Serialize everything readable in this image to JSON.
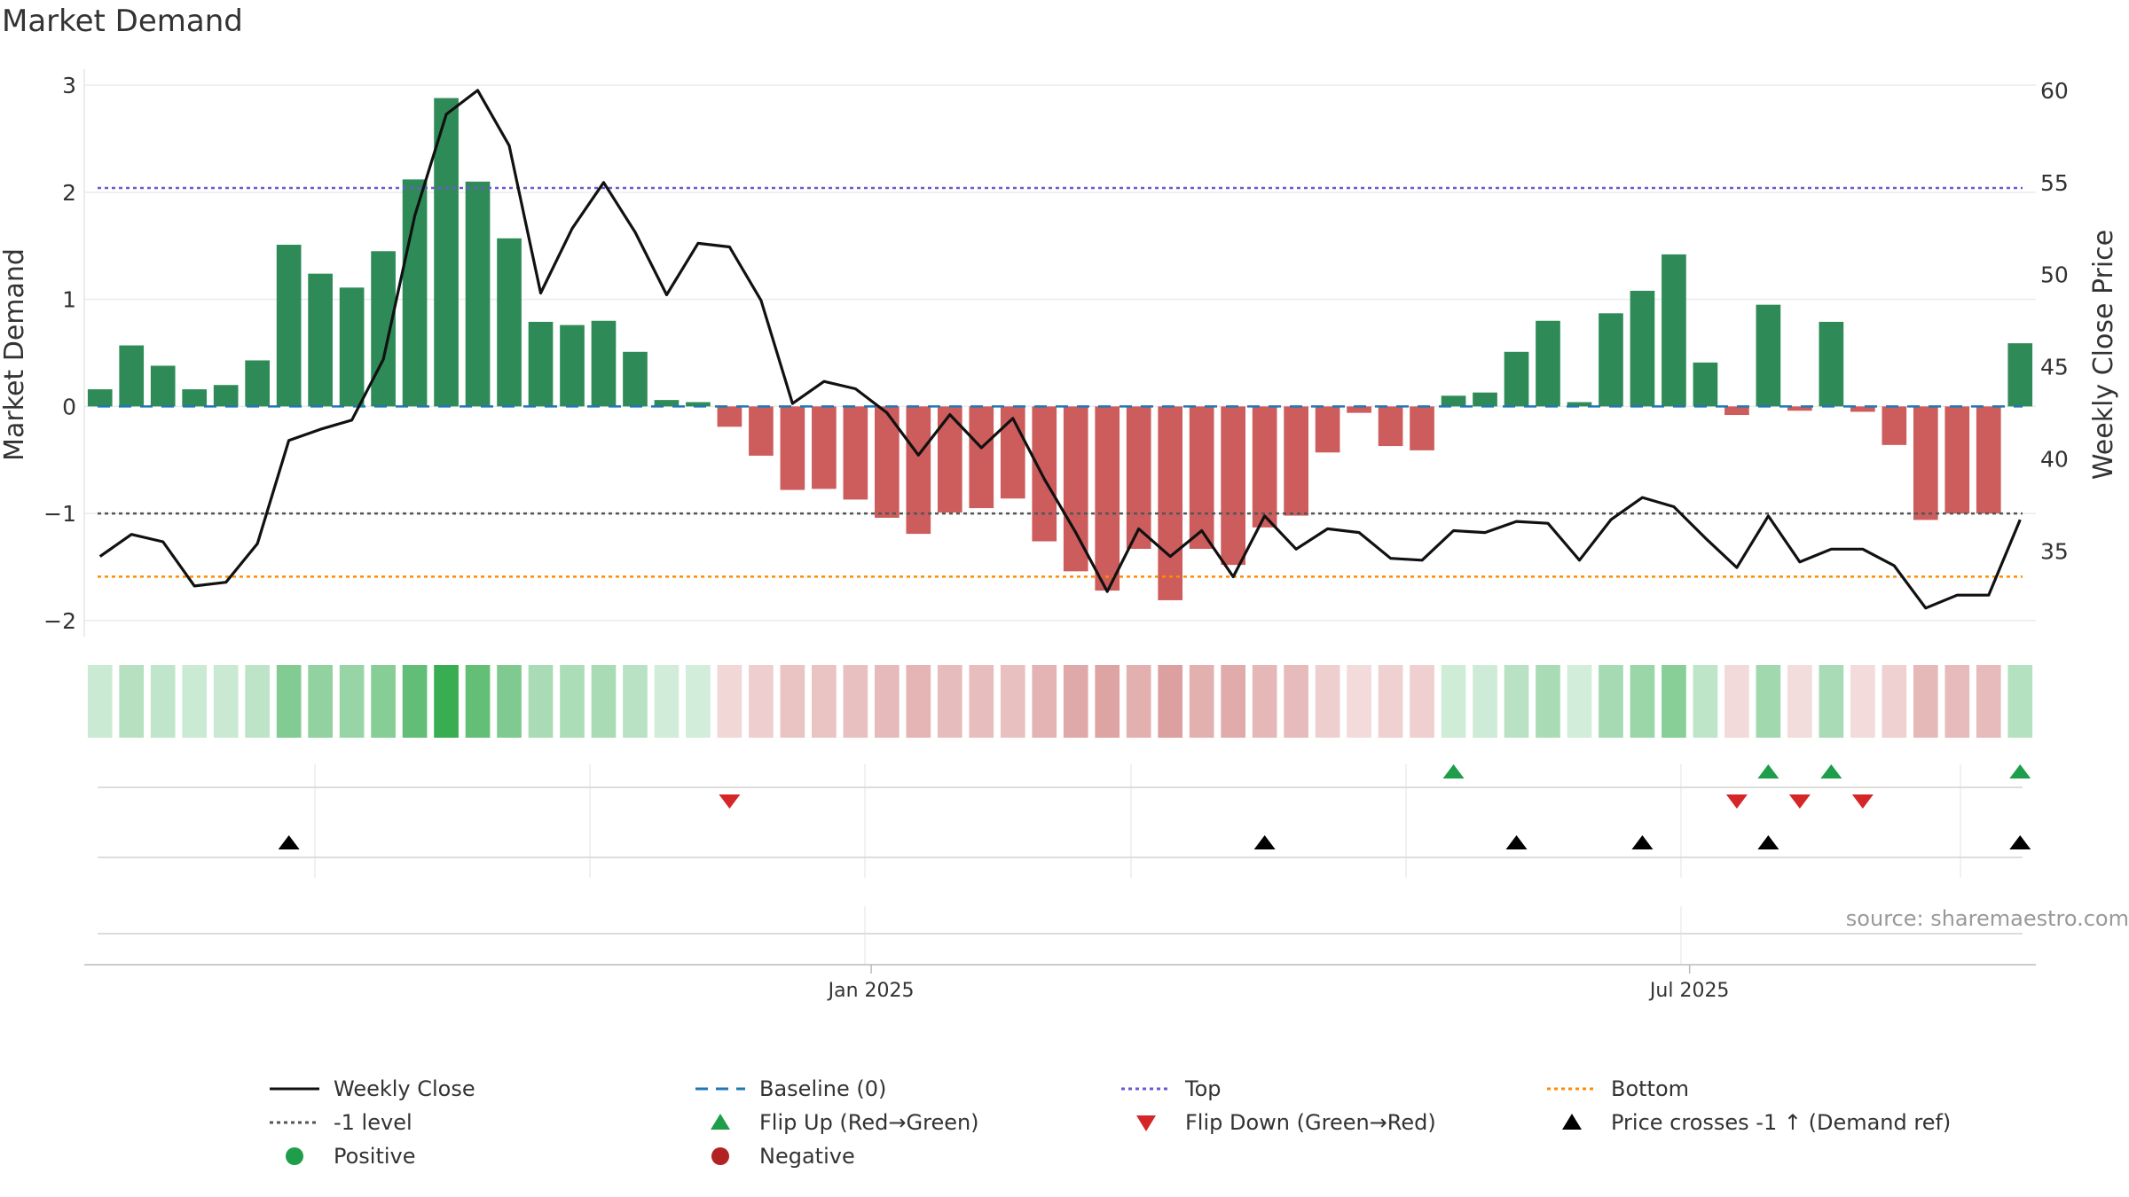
{
  "title": "Market Demand",
  "source_text": "source: sharemaestro.com",
  "colors": {
    "positive_bar": "#2e8b57",
    "negative_bar": "#cd5c5c",
    "price_line": "#111111",
    "baseline": "#1f77b4",
    "top_line": "#6a5acd",
    "bottom_line": "#ff8c00",
    "minus_one": "#555555",
    "flip_up": "#1e9e4a",
    "flip_down": "#d62728",
    "cross_marker": "#000000"
  },
  "chart_data": {
    "type": "bar",
    "title": "Market Demand",
    "ylabel": "Market Demand",
    "y2label": "Weekly Close Price",
    "ylim": [
      -2.15,
      3.15
    ],
    "y2lim": [
      30.35,
      61.15
    ],
    "yticks": [
      -2,
      -1,
      0,
      1,
      2,
      3
    ],
    "y2ticks": [
      35,
      40,
      45,
      50,
      55,
      60
    ],
    "xticks": [
      {
        "label": "Jan 2025",
        "week_index": 24.5
      },
      {
        "label": "Jul 2025",
        "week_index": 50.5
      }
    ],
    "weeks": 62,
    "demand": [
      0.16,
      0.57,
      0.38,
      0.16,
      0.2,
      0.43,
      1.51,
      1.24,
      1.11,
      1.45,
      2.12,
      2.88,
      2.1,
      1.57,
      0.79,
      0.76,
      0.8,
      0.51,
      0.06,
      0.04,
      -0.19,
      -0.46,
      -0.78,
      -0.77,
      -0.87,
      -1.04,
      -1.19,
      -0.99,
      -0.95,
      -0.86,
      -1.26,
      -1.54,
      -1.72,
      -1.33,
      -1.81,
      -1.33,
      -1.48,
      -1.13,
      -1.02,
      -0.43,
      -0.06,
      -0.37,
      -0.41,
      0.1,
      0.13,
      0.51,
      0.8,
      0.04,
      0.87,
      1.08,
      1.42,
      0.41,
      -0.08,
      0.95,
      -0.04,
      0.79,
      -0.05,
      -0.36,
      -1.06,
      -1.0,
      -1.0,
      0.59
    ],
    "weekly_close": [
      34.7,
      35.9,
      35.5,
      33.1,
      33.3,
      35.4,
      41.0,
      41.6,
      42.1,
      45.4,
      53.2,
      58.7,
      60.0,
      57.0,
      49.0,
      52.5,
      55.0,
      52.3,
      48.9,
      51.7,
      51.5,
      48.6,
      43.0,
      44.2,
      43.8,
      42.5,
      40.2,
      42.4,
      40.6,
      42.2,
      38.9,
      36.0,
      32.8,
      36.2,
      34.7,
      36.1,
      33.6,
      36.9,
      35.1,
      36.2,
      36.0,
      34.6,
      34.5,
      36.1,
      36.0,
      36.6,
      36.5,
      34.5,
      36.7,
      37.9,
      37.4,
      35.7,
      34.1,
      36.9,
      34.4,
      35.1,
      35.1,
      34.2,
      31.9,
      32.6,
      32.6,
      36.7
    ],
    "reference_lines": [
      {
        "name": "Baseline (0)",
        "value": 0
      },
      {
        "name": "Top",
        "value": 2.04
      },
      {
        "name": "Bottom",
        "value": -1.59
      },
      {
        "name": "-1 level",
        "value": -1
      }
    ],
    "flip_up_weeks": [
      43,
      53,
      55,
      61
    ],
    "flip_down_weeks": [
      20,
      52,
      54,
      56
    ],
    "price_cross_weeks": [
      6,
      37,
      45,
      49,
      53,
      61
    ],
    "legend": [
      {
        "label": "Weekly Close",
        "icon": "line-solid-black"
      },
      {
        "label": "Baseline (0)",
        "icon": "line-dashed-blue"
      },
      {
        "label": "Top",
        "icon": "line-dotted-purple"
      },
      {
        "label": "Bottom",
        "icon": "line-dotted-orange"
      },
      {
        "label": "-1 level",
        "icon": "line-dotted-gray"
      },
      {
        "label": "Flip Up (Red→Green)",
        "icon": "triangle-up-green"
      },
      {
        "label": "Flip Down (Green→Red)",
        "icon": "triangle-down-red"
      },
      {
        "label": "Price crosses -1 ↑ (Demand ref)",
        "icon": "triangle-up-black"
      },
      {
        "label": "Positive",
        "icon": "dot-green"
      },
      {
        "label": "Negative",
        "icon": "dot-red"
      }
    ]
  }
}
